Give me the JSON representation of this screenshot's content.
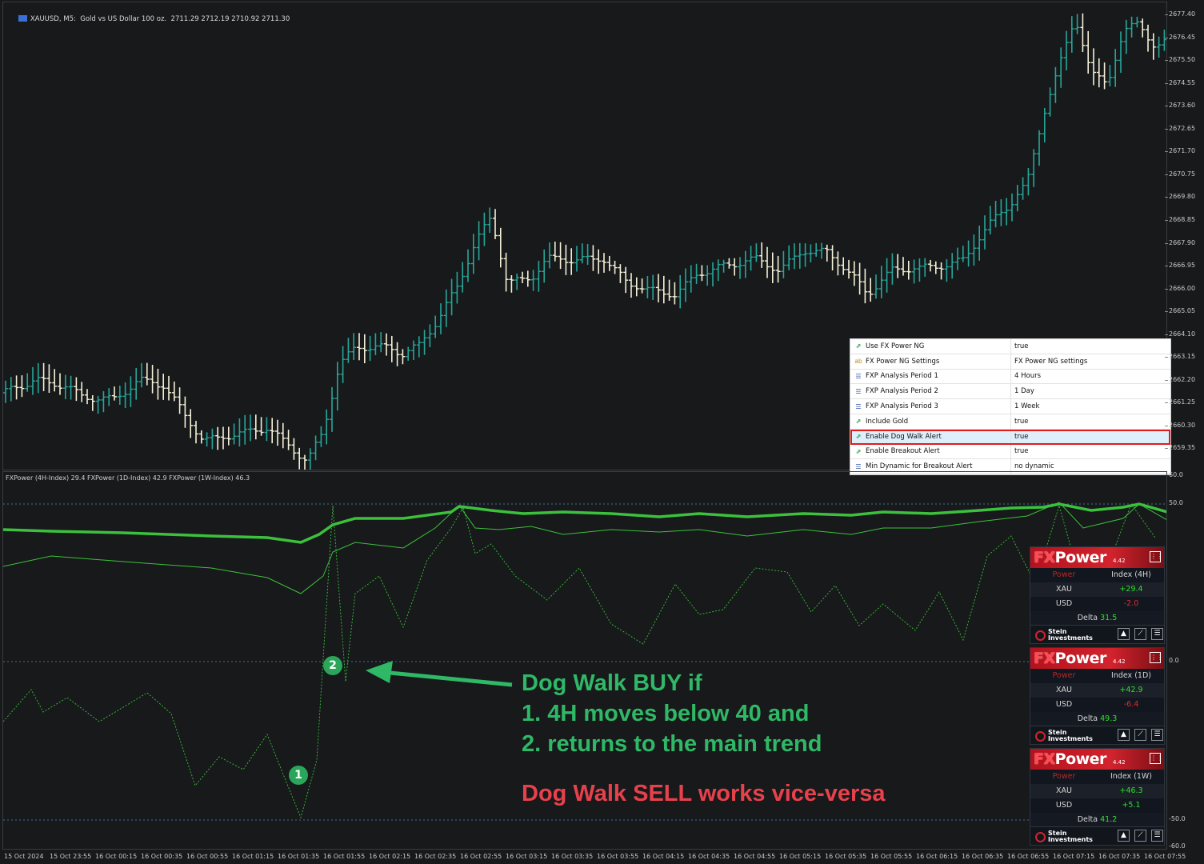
{
  "chart": {
    "title": "XAUUSD, M5:  Gold vs US Dollar 100 oz.  2711.29 2712.19 2710.92 2711.30",
    "price_ticks": [
      "2677.40",
      "2676.45",
      "2675.50",
      "2674.55",
      "2673.60",
      "2672.65",
      "2671.70",
      "2670.75",
      "2669.80",
      "2668.85",
      "2667.90",
      "2666.95",
      "2666.00",
      "2665.05",
      "2664.10",
      "2663.15",
      "2662.20",
      "2661.25",
      "2660.30",
      "2659.35"
    ],
    "time_ticks": [
      "15 Oct 2024",
      "15 Oct 23:55",
      "16 Oct 00:15",
      "16 Oct 00:35",
      "16 Oct 00:55",
      "16 Oct 01:15",
      "16 Oct 01:35",
      "16 Oct 01:55",
      "16 Oct 02:15",
      "16 Oct 02:35",
      "16 Oct 02:55",
      "16 Oct 03:15",
      "16 Oct 03:35",
      "16 Oct 03:55",
      "16 Oct 04:15",
      "16 Oct 04:35",
      "16 Oct 04:55",
      "16 Oct 05:15",
      "16 Oct 05:35",
      "16 Oct 05:55",
      "16 Oct 06:15",
      "16 Oct 06:35",
      "16 Oct 06:55",
      "16 Oct 07:15",
      "16 Oct 07:35",
      "16 Oct 07:55"
    ],
    "bull_color": "#26a69a",
    "bear_color": "#f5f0d7"
  },
  "properties": [
    {
      "icon": "bool",
      "name": "Use FX Power NG",
      "value": "true",
      "highlight": false
    },
    {
      "icon": "str",
      "name": "FX Power NG Settings",
      "value": "FX Power NG settings",
      "highlight": false
    },
    {
      "icon": "enum",
      "name": "FXP Analysis Period 1",
      "value": "4 Hours",
      "highlight": false
    },
    {
      "icon": "enum",
      "name": "FXP Analysis Period 2",
      "value": "1 Day",
      "highlight": false
    },
    {
      "icon": "enum",
      "name": "FXP Analysis Period 3",
      "value": "1 Week",
      "highlight": false
    },
    {
      "icon": "bool",
      "name": "Include Gold",
      "value": "true",
      "highlight": false
    },
    {
      "icon": "bool",
      "name": "Enable Dog Walk Alert",
      "value": "true",
      "highlight": true
    },
    {
      "icon": "bool",
      "name": "Enable Breakout Alert",
      "value": "true",
      "highlight": false
    },
    {
      "icon": "enum",
      "name": "Min Dynamic for Breakout Alert",
      "value": "no dynamic",
      "highlight": false
    }
  ],
  "icons": {
    "bool": "ab-bool-icon",
    "str": "ab-string-icon",
    "enum": "enum-list-icon"
  },
  "indicator": {
    "title": "FXPower (4H-Index) 29.4 FXPower (1D-Index) 42.9 FXPower (1W-Index) 46.3",
    "levels": [
      "60.0",
      "50.0",
      "0.0",
      "-50.0",
      "-60.0"
    ],
    "line_color": "#3cc13c"
  },
  "fxpower": [
    {
      "logo_fx": "FX",
      "logo_power": "Power",
      "version": "4.42",
      "header_power": "Power",
      "header_index": "Index (4H)",
      "rows": [
        {
          "symbol": "XAU",
          "value": "+29.4",
          "sign": "pos"
        },
        {
          "symbol": "USD",
          "value": "-2.0",
          "sign": "neg"
        }
      ],
      "delta_label": "Delta",
      "delta_value": "31.5",
      "brand": "Stein Investments"
    },
    {
      "logo_fx": "FX",
      "logo_power": "Power",
      "version": "4.42",
      "header_power": "Power",
      "header_index": "Index (1D)",
      "rows": [
        {
          "symbol": "XAU",
          "value": "+42.9",
          "sign": "pos"
        },
        {
          "symbol": "USD",
          "value": "-6.4",
          "sign": "neg"
        }
      ],
      "delta_label": "Delta",
      "delta_value": "49.3",
      "brand": "Stein Investments"
    },
    {
      "logo_fx": "FX",
      "logo_power": "Power",
      "version": "4.42",
      "header_power": "Power",
      "header_index": "Index (1W)",
      "rows": [
        {
          "symbol": "XAU",
          "value": "+46.3",
          "sign": "pos"
        },
        {
          "symbol": "USD",
          "value": "+5.1",
          "sign": "pos"
        }
      ],
      "delta_label": "Delta",
      "delta_value": "41.2",
      "brand": "Stein Investments"
    }
  ],
  "annotation": {
    "buy_line1": "Dog Walk BUY if",
    "buy_line2": "1. 4H moves below 40 and",
    "buy_line3": "2. returns to the main trend",
    "sell": "Dog Walk SELL works vice-versa",
    "marker1": "1",
    "marker2": "2",
    "green": "#2fb866",
    "red": "#e8414c"
  }
}
